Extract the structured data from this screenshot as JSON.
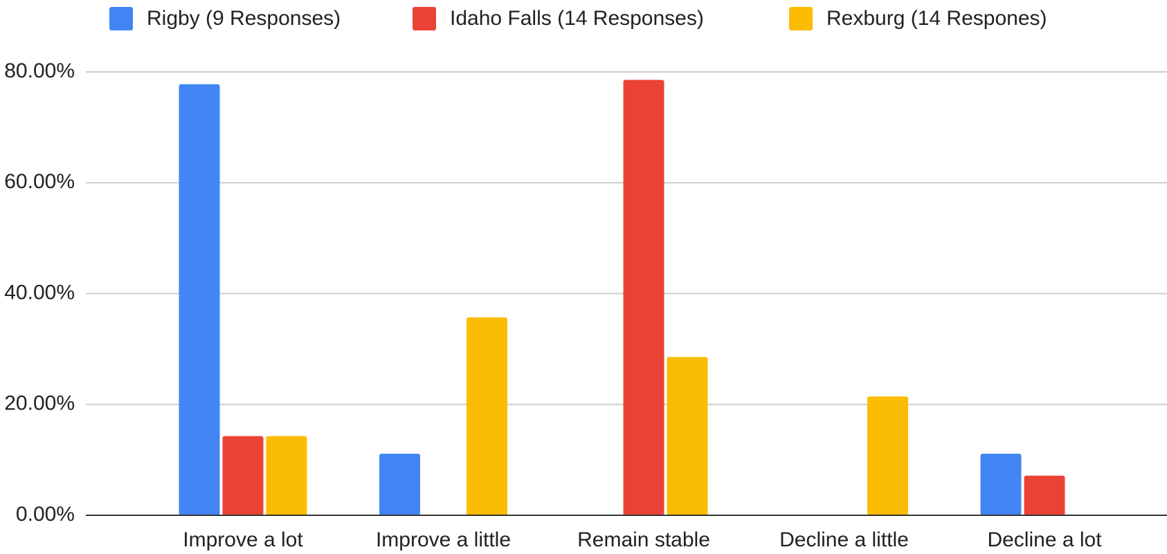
{
  "chart_data": {
    "type": "bar",
    "categories": [
      "Improve a lot",
      "Improve a little",
      "Remain stable",
      "Decline a little",
      "Decline a lot"
    ],
    "series": [
      {
        "name": "Rigby (9 Responses)",
        "color": "#4285f4",
        "values": [
          77.78,
          11.11,
          0,
          0,
          11.11
        ]
      },
      {
        "name": "Idaho Falls (14 Responses)",
        "color": "#ea4335",
        "values": [
          14.29,
          0,
          78.57,
          0,
          7.14
        ]
      },
      {
        "name": "Rexburg (14 Respones)",
        "color": "#fbbc04",
        "values": [
          14.29,
          35.71,
          28.57,
          21.43,
          0
        ]
      }
    ],
    "ylim": [
      0,
      80
    ],
    "yticks": [
      {
        "value": 0,
        "label": "0.00%"
      },
      {
        "value": 20,
        "label": "20.00%"
      },
      {
        "value": 40,
        "label": "40.00%"
      },
      {
        "value": 60,
        "label": "60.00%"
      },
      {
        "value": 80,
        "label": "80.00%"
      }
    ],
    "grid": true,
    "legend": "top"
  }
}
